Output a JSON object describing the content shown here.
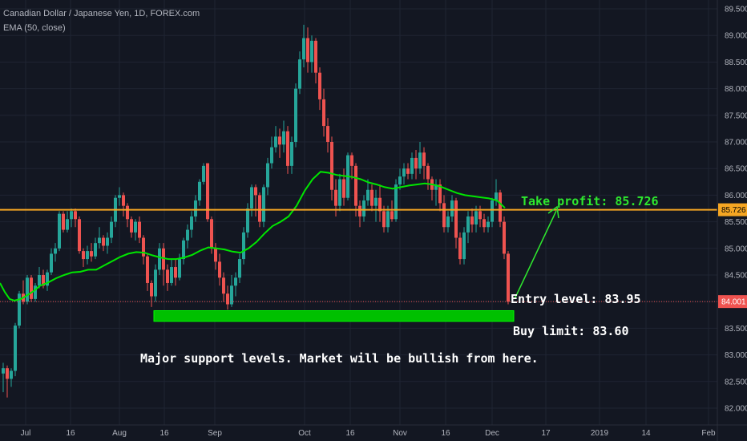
{
  "header": {
    "symbol_line": "Canadian Dollar / Japanese Yen, 1D, FOREX.com",
    "indicator_line": "EMA (50, close)"
  },
  "colors": {
    "background": "#131722",
    "grid": "#1f2433",
    "up_candle": "#26a69a",
    "down_candle": "#ef5350",
    "ema": "#00e600",
    "take_profit_line": "#f5a623",
    "price_line": "#ef5350",
    "support_zone": "#00c000",
    "take_profit_text": "#2ee82e",
    "annotation_text": "#ffffff"
  },
  "chart_data": {
    "type": "candlestick",
    "x_axis": {
      "tick_labels": [
        "Jul",
        "16",
        "Aug",
        "16",
        "Sep",
        "Oct",
        "16",
        "Nov",
        "16",
        "Dec",
        "17",
        "2019",
        "14",
        "Feb"
      ]
    },
    "y_axis": {
      "ylim": [
        81.9,
        89.6
      ],
      "ticks": [
        "82.000",
        "82.500",
        "83.000",
        "83.500",
        "84.000",
        "84.500",
        "85.000",
        "85.500",
        "86.000",
        "86.500",
        "87.000",
        "87.500",
        "88.000",
        "88.500",
        "89.000",
        "89.500"
      ],
      "side": "right"
    },
    "grid": true,
    "series": [
      {
        "name": "EMA (50, close)",
        "type": "line",
        "points": [
          [
            0,
            84.35
          ],
          [
            6,
            84.18
          ],
          [
            12,
            84.05
          ],
          [
            18,
            84.02
          ],
          [
            26,
            84.05
          ],
          [
            34,
            84.12
          ],
          [
            42,
            84.2
          ],
          [
            50,
            84.3
          ],
          [
            60,
            84.36
          ],
          [
            70,
            84.44
          ],
          [
            80,
            84.5
          ],
          [
            90,
            84.55
          ],
          [
            100,
            84.56
          ],
          [
            110,
            84.6
          ],
          [
            120,
            84.6
          ],
          [
            130,
            84.68
          ],
          [
            140,
            84.76
          ],
          [
            150,
            84.84
          ],
          [
            160,
            84.9
          ],
          [
            170,
            84.93
          ],
          [
            180,
            84.92
          ],
          [
            190,
            84.87
          ],
          [
            200,
            84.83
          ],
          [
            210,
            84.8
          ],
          [
            220,
            84.8
          ],
          [
            230,
            84.83
          ],
          [
            240,
            84.88
          ],
          [
            250,
            84.96
          ],
          [
            260,
            85.02
          ],
          [
            270,
            85.0
          ],
          [
            280,
            84.98
          ],
          [
            290,
            84.94
          ],
          [
            300,
            84.92
          ],
          [
            310,
            85.0
          ],
          [
            320,
            85.12
          ],
          [
            330,
            85.28
          ],
          [
            340,
            85.42
          ],
          [
            350,
            85.5
          ],
          [
            360,
            85.6
          ],
          [
            370,
            85.8
          ],
          [
            380,
            86.08
          ],
          [
            390,
            86.3
          ],
          [
            400,
            86.44
          ],
          [
            410,
            86.42
          ],
          [
            420,
            86.38
          ],
          [
            430,
            86.36
          ],
          [
            440,
            86.34
          ],
          [
            450,
            86.3
          ],
          [
            460,
            86.24
          ],
          [
            470,
            86.2
          ],
          [
            480,
            86.15
          ],
          [
            490,
            86.12
          ],
          [
            500,
            86.15
          ],
          [
            510,
            86.18
          ],
          [
            520,
            86.2
          ],
          [
            530,
            86.22
          ],
          [
            540,
            86.2
          ],
          [
            550,
            86.16
          ],
          [
            560,
            86.1
          ],
          [
            570,
            86.04
          ],
          [
            580,
            86.0
          ],
          [
            590,
            85.98
          ],
          [
            600,
            85.96
          ],
          [
            610,
            85.94
          ],
          [
            620,
            85.9
          ],
          [
            630,
            85.76
          ]
        ]
      },
      {
        "name": "Take profit",
        "type": "hline",
        "value": 85.726,
        "label": "85.726"
      },
      {
        "name": "Last price",
        "type": "hline",
        "value": 84.001,
        "label": "84.001"
      }
    ],
    "candles_note": "OHLC candles approximated from the screenshot",
    "candles": [
      [
        4,
        82.65,
        82.75,
        82.85,
        82.3
      ],
      [
        9,
        82.75,
        82.55,
        82.8,
        82.2
      ],
      [
        14,
        82.55,
        82.7,
        82.75,
        82.4
      ],
      [
        19,
        82.7,
        83.55,
        83.6,
        82.6
      ],
      [
        24,
        83.55,
        84.15,
        84.2,
        83.5
      ],
      [
        29,
        84.15,
        84.0,
        84.4,
        83.95
      ],
      [
        34,
        84.0,
        84.45,
        84.5,
        83.95
      ],
      [
        39,
        84.45,
        84.05,
        84.5,
        84.0
      ],
      [
        44,
        84.05,
        84.3,
        84.35,
        84.0
      ],
      [
        49,
        84.3,
        84.5,
        84.65,
        84.25
      ],
      [
        54,
        84.5,
        84.3,
        84.6,
        84.25
      ],
      [
        59,
        84.3,
        84.55,
        84.6,
        84.2
      ],
      [
        64,
        84.55,
        84.9,
        85.0,
        84.5
      ],
      [
        69,
        84.9,
        85.0,
        85.1,
        84.75
      ],
      [
        74,
        85.0,
        85.65,
        85.7,
        84.95
      ],
      [
        79,
        85.65,
        85.35,
        85.7,
        85.3
      ],
      [
        84,
        85.35,
        85.55,
        85.7,
        85.3
      ],
      [
        89,
        85.55,
        85.7,
        85.75,
        85.4
      ],
      [
        94,
        85.7,
        85.55,
        85.75,
        85.4
      ],
      [
        99,
        85.55,
        84.95,
        85.6,
        84.9
      ],
      [
        104,
        84.95,
        84.8,
        85.0,
        84.65
      ],
      [
        109,
        84.8,
        84.95,
        85.05,
        84.7
      ],
      [
        114,
        84.95,
        84.85,
        85.1,
        84.75
      ],
      [
        119,
        84.85,
        85.1,
        85.2,
        84.8
      ],
      [
        124,
        85.1,
        85.2,
        85.4,
        85.0
      ],
      [
        129,
        85.2,
        85.05,
        85.25,
        84.95
      ],
      [
        134,
        85.05,
        85.2,
        85.3,
        84.9
      ],
      [
        139,
        85.2,
        85.5,
        85.6,
        85.1
      ],
      [
        144,
        85.5,
        85.95,
        86.0,
        85.4
      ],
      [
        149,
        85.95,
        86.0,
        86.15,
        85.8
      ],
      [
        154,
        86.0,
        85.8,
        86.05,
        85.6
      ],
      [
        159,
        85.8,
        85.55,
        85.85,
        85.4
      ],
      [
        164,
        85.55,
        85.3,
        85.6,
        85.2
      ],
      [
        169,
        85.3,
        85.5,
        85.55,
        85.15
      ],
      [
        174,
        85.5,
        85.2,
        85.6,
        85.1
      ],
      [
        179,
        85.2,
        84.85,
        85.25,
        84.7
      ],
      [
        184,
        84.85,
        84.35,
        84.9,
        84.2
      ],
      [
        189,
        84.35,
        84.1,
        84.4,
        83.9
      ],
      [
        194,
        84.1,
        84.6,
        84.7,
        84.0
      ],
      [
        199,
        84.6,
        85.0,
        85.1,
        84.5
      ],
      [
        204,
        85.0,
        84.6,
        85.1,
        84.3
      ],
      [
        209,
        84.6,
        84.35,
        84.7,
        84.2
      ],
      [
        214,
        84.35,
        84.65,
        84.8,
        84.3
      ],
      [
        219,
        84.65,
        84.45,
        84.8,
        84.3
      ],
      [
        224,
        84.45,
        84.8,
        84.9,
        84.4
      ],
      [
        229,
        84.8,
        85.15,
        85.2,
        84.7
      ],
      [
        234,
        85.15,
        85.35,
        85.45,
        85.0
      ],
      [
        239,
        85.35,
        85.6,
        85.7,
        85.2
      ],
      [
        244,
        85.6,
        85.9,
        86.0,
        85.5
      ],
      [
        249,
        85.9,
        86.25,
        86.3,
        85.8
      ],
      [
        254,
        86.25,
        86.55,
        86.6,
        86.2
      ],
      [
        259,
        86.6,
        85.55,
        86.6,
        85.5
      ],
      [
        264,
        85.55,
        85.0,
        85.6,
        84.9
      ],
      [
        269,
        85.0,
        84.75,
        85.1,
        84.6
      ],
      [
        274,
        84.75,
        84.45,
        84.9,
        84.3
      ],
      [
        279,
        84.45,
        84.15,
        84.55,
        84.0
      ],
      [
        284,
        84.15,
        83.95,
        84.3,
        83.85
      ],
      [
        289,
        83.95,
        84.3,
        84.5,
        83.9
      ],
      [
        294,
        84.3,
        84.45,
        84.55,
        84.1
      ],
      [
        299,
        84.45,
        84.8,
        84.9,
        84.35
      ],
      [
        304,
        84.8,
        85.3,
        85.4,
        84.7
      ],
      [
        309,
        85.3,
        85.75,
        85.85,
        85.2
      ],
      [
        314,
        85.75,
        86.15,
        86.2,
        85.6
      ],
      [
        319,
        86.15,
        86.0,
        86.2,
        85.6
      ],
      [
        324,
        86.0,
        85.5,
        86.05,
        85.4
      ],
      [
        329,
        85.5,
        86.15,
        86.2,
        85.4
      ],
      [
        334,
        86.15,
        86.6,
        86.7,
        86.0
      ],
      [
        339,
        86.6,
        86.9,
        87.1,
        86.5
      ],
      [
        344,
        86.9,
        87.1,
        87.3,
        86.8
      ],
      [
        349,
        87.1,
        86.95,
        87.25,
        86.7
      ],
      [
        354,
        86.95,
        87.2,
        87.4,
        86.8
      ],
      [
        359,
        87.2,
        86.55,
        87.3,
        86.4
      ],
      [
        364,
        86.55,
        87.0,
        87.1,
        86.4
      ],
      [
        369,
        87.0,
        88.0,
        88.1,
        86.9
      ],
      [
        374,
        88.0,
        88.55,
        88.7,
        87.9
      ],
      [
        379,
        88.55,
        88.95,
        89.2,
        88.4
      ],
      [
        384,
        88.95,
        88.5,
        89.15,
        88.3
      ],
      [
        389,
        88.5,
        88.9,
        89.0,
        88.3
      ],
      [
        394,
        88.9,
        88.3,
        88.95,
        88.1
      ],
      [
        399,
        88.3,
        87.8,
        88.4,
        87.6
      ],
      [
        404,
        87.8,
        87.3,
        88.0,
        87.1
      ],
      [
        409,
        87.3,
        87.0,
        87.45,
        86.8
      ],
      [
        414,
        87.0,
        86.1,
        87.1,
        85.9
      ],
      [
        419,
        86.1,
        85.8,
        86.3,
        85.6
      ],
      [
        424,
        85.8,
        86.3,
        86.4,
        85.7
      ],
      [
        429,
        86.3,
        85.95,
        86.5,
        85.8
      ],
      [
        434,
        85.95,
        86.75,
        86.8,
        85.9
      ],
      [
        439,
        86.75,
        86.55,
        86.8,
        86.3
      ],
      [
        444,
        86.55,
        85.8,
        86.6,
        85.6
      ],
      [
        449,
        85.8,
        85.6,
        85.9,
        85.4
      ],
      [
        454,
        85.6,
        85.9,
        86.0,
        85.5
      ],
      [
        459,
        85.9,
        86.1,
        86.3,
        85.8
      ],
      [
        464,
        86.1,
        85.8,
        86.2,
        85.7
      ],
      [
        469,
        85.8,
        85.95,
        86.1,
        85.5
      ],
      [
        474,
        85.95,
        85.7,
        86.2,
        85.5
      ],
      [
        479,
        85.7,
        85.4,
        85.8,
        85.3
      ],
      [
        484,
        85.4,
        85.7,
        85.8,
        85.3
      ],
      [
        489,
        85.7,
        85.55,
        85.9,
        85.5
      ],
      [
        494,
        85.55,
        86.2,
        86.3,
        85.5
      ],
      [
        499,
        86.2,
        86.35,
        86.5,
        86.1
      ],
      [
        504,
        86.35,
        86.5,
        86.6,
        86.2
      ],
      [
        509,
        86.5,
        86.4,
        86.6,
        86.3
      ],
      [
        514,
        86.4,
        86.7,
        86.8,
        86.3
      ],
      [
        519,
        86.7,
        86.5,
        86.85,
        86.3
      ],
      [
        524,
        86.5,
        86.8,
        87.0,
        86.4
      ],
      [
        529,
        86.8,
        86.55,
        86.9,
        86.3
      ],
      [
        534,
        86.55,
        86.3,
        86.6,
        86.1
      ],
      [
        539,
        86.3,
        86.1,
        86.35,
        85.9
      ],
      [
        544,
        86.1,
        86.2,
        86.3,
        85.8
      ],
      [
        549,
        86.2,
        85.85,
        86.3,
        85.7
      ],
      [
        554,
        85.85,
        85.4,
        86.0,
        85.3
      ],
      [
        559,
        85.4,
        85.6,
        85.7,
        85.3
      ],
      [
        564,
        85.6,
        85.9,
        86.0,
        85.5
      ],
      [
        569,
        85.9,
        85.2,
        85.95,
        85.0
      ],
      [
        574,
        85.2,
        84.8,
        85.3,
        84.7
      ],
      [
        579,
        84.8,
        85.3,
        85.4,
        84.7
      ],
      [
        584,
        85.3,
        85.6,
        85.7,
        85.1
      ],
      [
        589,
        85.6,
        85.45,
        85.75,
        85.3
      ],
      [
        594,
        85.45,
        85.7,
        85.8,
        85.3
      ],
      [
        599,
        85.7,
        85.55,
        85.8,
        85.4
      ],
      [
        604,
        85.55,
        85.4,
        85.65,
        85.3
      ],
      [
        609,
        85.4,
        85.5,
        85.6,
        85.3
      ],
      [
        614,
        85.5,
        85.9,
        85.95,
        85.4
      ],
      [
        619,
        85.9,
        86.05,
        86.3,
        85.8
      ],
      [
        624,
        86.05,
        85.5,
        86.1,
        85.4
      ],
      [
        629,
        85.5,
        84.9,
        85.6,
        84.8
      ],
      [
        634,
        84.9,
        84.0,
        84.95,
        83.95
      ]
    ]
  },
  "annotations": {
    "take_profit": "Take profit: 85.726",
    "entry_level": "Entry level: 83.95",
    "buy_limit": "Buy limit: 83.60",
    "note": "Major support levels. Market will be bullish from here.",
    "support_zone": {
      "top": 83.83,
      "bottom": 83.63
    }
  }
}
